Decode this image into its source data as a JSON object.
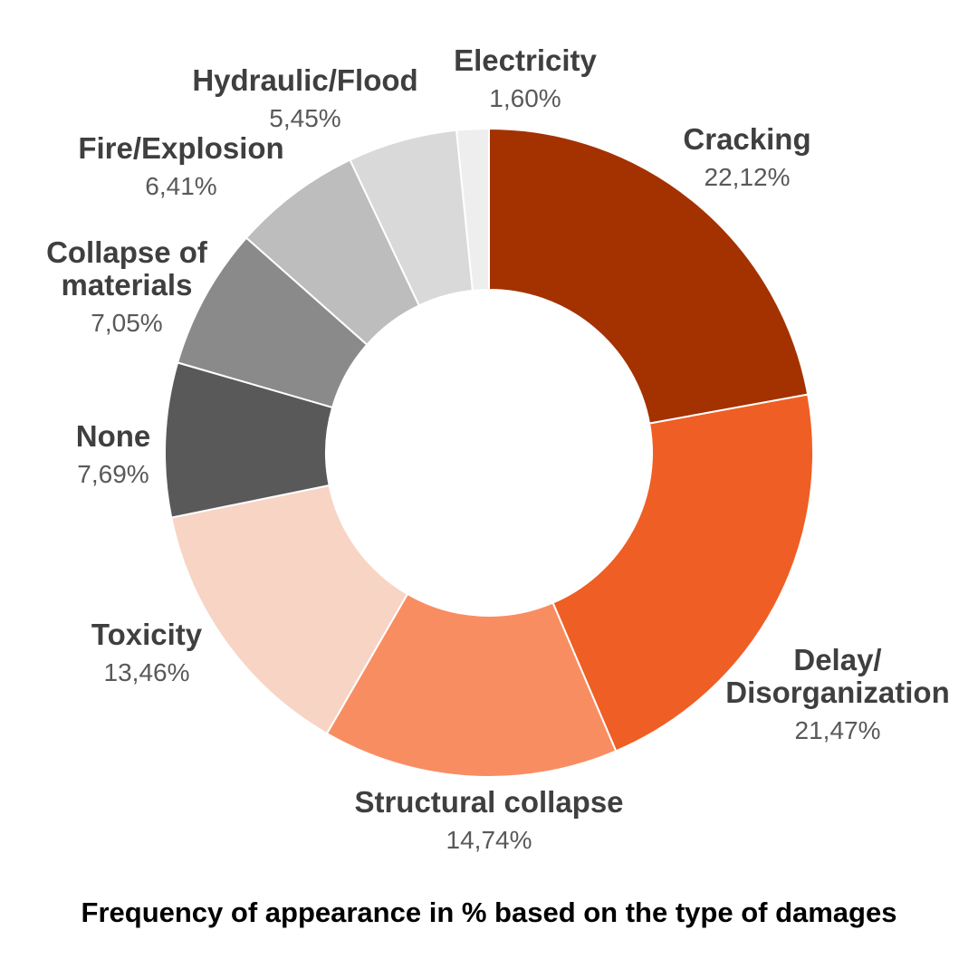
{
  "chart_data": {
    "type": "pie",
    "variant": "donut",
    "title": "Frequency of appearance in % based on the type of damages",
    "legend": "labels on slices",
    "slices": [
      {
        "label": "Cracking",
        "label_lines": [
          "Cracking"
        ],
        "value": 22.12,
        "value_text": "22,12%",
        "color": "#A33200"
      },
      {
        "label": "Delay/ Disorganization",
        "label_lines": [
          "Delay/",
          "Disorganization"
        ],
        "value": 21.47,
        "value_text": "21,47%",
        "color": "#EF5E24"
      },
      {
        "label": "Structural collapse",
        "label_lines": [
          "Structural collapse"
        ],
        "value": 14.74,
        "value_text": "14,74%",
        "color": "#F98D62"
      },
      {
        "label": "Toxicity",
        "label_lines": [
          "Toxicity"
        ],
        "value": 13.46,
        "value_text": "13,46%",
        "color": "#F8D4C5"
      },
      {
        "label": "None",
        "label_lines": [
          "None"
        ],
        "value": 7.69,
        "value_text": "7,69%",
        "color": "#595959"
      },
      {
        "label": "Collapse of materials",
        "label_lines": [
          "Collapse of",
          "materials"
        ],
        "value": 7.05,
        "value_text": "7,05%",
        "color": "#8A8A8A"
      },
      {
        "label": "Fire/Explosion",
        "label_lines": [
          "Fire/Explosion"
        ],
        "value": 6.41,
        "value_text": "6,41%",
        "color": "#BDBDBD"
      },
      {
        "label": "Hydraulic/Flood",
        "label_lines": [
          "Hydraulic/Flood"
        ],
        "value": 5.45,
        "value_text": "5,45%",
        "color": "#D9D9D9"
      },
      {
        "label": "Electricity",
        "label_lines": [
          "Electricity"
        ],
        "value": 1.6,
        "value_text": "1,60%",
        "color": "#EEEEEE"
      }
    ]
  }
}
